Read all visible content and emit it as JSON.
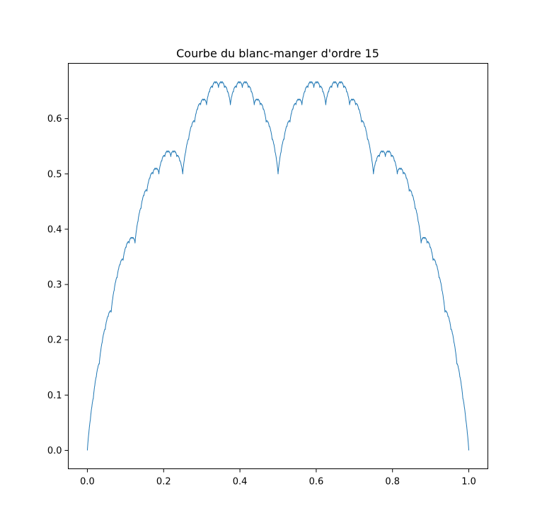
{
  "chart_data": {
    "type": "line",
    "title": "Courbe du blanc-manger d'ordre 15",
    "xlabel": "",
    "ylabel": "",
    "xlim": [
      -0.05,
      1.05
    ],
    "ylim": [
      -0.0333,
      0.7
    ],
    "xticks": [
      0.0,
      0.2,
      0.4,
      0.6,
      0.8,
      1.0
    ],
    "xtick_labels": [
      "0.0",
      "0.2",
      "0.4",
      "0.6",
      "0.8",
      "1.0"
    ],
    "yticks": [
      0.0,
      0.1,
      0.2,
      0.3,
      0.4,
      0.5,
      0.6
    ],
    "ytick_labels": [
      "0.0",
      "0.1",
      "0.2",
      "0.3",
      "0.4",
      "0.5",
      "0.6"
    ],
    "grid": false,
    "legend": "none",
    "line_color": "#1f77b4",
    "series": [
      {
        "function": "T(x) = sum_{n=0}^{15} s(2^n x) / 2^n, where s(x) = distance from x to the nearest integer",
        "order": 15,
        "x_range": [
          0,
          1
        ]
      }
    ]
  }
}
